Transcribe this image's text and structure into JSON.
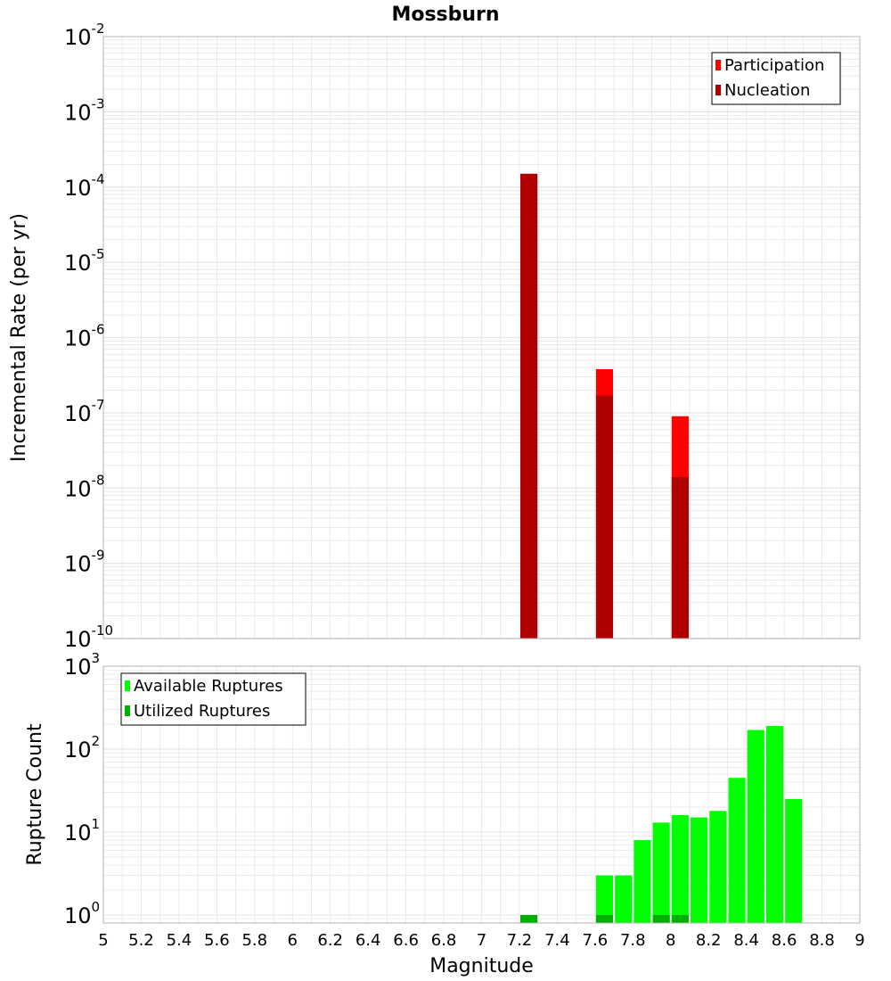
{
  "title": "Mossburn",
  "colors": {
    "participation": "#ff0000",
    "nucleation": "#b00000",
    "available": "#00ff00",
    "utilized": "#00b000",
    "grid": "#e6e6e6",
    "frame": "#b4b4b4"
  },
  "chart_data": [
    {
      "type": "bar",
      "ylabel": "Incremental Rate (per yr)",
      "yscale": "log",
      "ylim": [
        1e-10,
        0.01
      ],
      "y_tick_exponents": [
        -2,
        -3,
        -4,
        -5,
        -6,
        -7,
        -8,
        -9,
        -10
      ],
      "xlim": [
        5,
        9
      ],
      "bar_width": 0.09,
      "legend": {
        "position": "top-right",
        "entries": [
          "Participation",
          "Nucleation"
        ]
      },
      "series": [
        {
          "name": "Participation",
          "x": [
            7.25,
            7.65,
            8.05
          ],
          "values": [
            0.00015,
            3.8e-07,
            9e-08
          ]
        },
        {
          "name": "Nucleation",
          "x": [
            7.25,
            7.65,
            8.05
          ],
          "values": [
            0.00015,
            1.7e-07,
            1.4e-08
          ]
        }
      ]
    },
    {
      "type": "bar",
      "xlabel": "Magnitude",
      "ylabel": "Rupture Count",
      "yscale": "log",
      "ylim": [
        0.8,
        1000
      ],
      "y_tick_exponents": [
        3,
        2,
        1,
        0
      ],
      "xlim": [
        5,
        9
      ],
      "x_ticks": [
        "5",
        "5.2",
        "5.4",
        "5.6",
        "5.8",
        "6",
        "6.2",
        "6.4",
        "6.6",
        "6.8",
        "7",
        "7.2",
        "7.4",
        "7.6",
        "7.8",
        "8",
        "8.2",
        "8.4",
        "8.6",
        "8.8",
        "9"
      ],
      "bar_width": 0.09,
      "legend": {
        "position": "top-left",
        "entries": [
          "Available Ruptures",
          "Utilized Ruptures"
        ]
      },
      "series": [
        {
          "name": "Available Ruptures",
          "x": [
            7.25,
            7.65,
            7.75,
            7.85,
            7.95,
            8.05,
            8.15,
            8.25,
            8.35,
            8.45,
            8.55,
            8.65
          ],
          "values": [
            1,
            3,
            3,
            8,
            13,
            16,
            15,
            18,
            45,
            170,
            190,
            25
          ]
        },
        {
          "name": "Utilized Ruptures",
          "x": [
            7.25,
            7.65,
            7.95,
            8.05
          ],
          "values": [
            1,
            1,
            1,
            1
          ]
        }
      ]
    }
  ]
}
